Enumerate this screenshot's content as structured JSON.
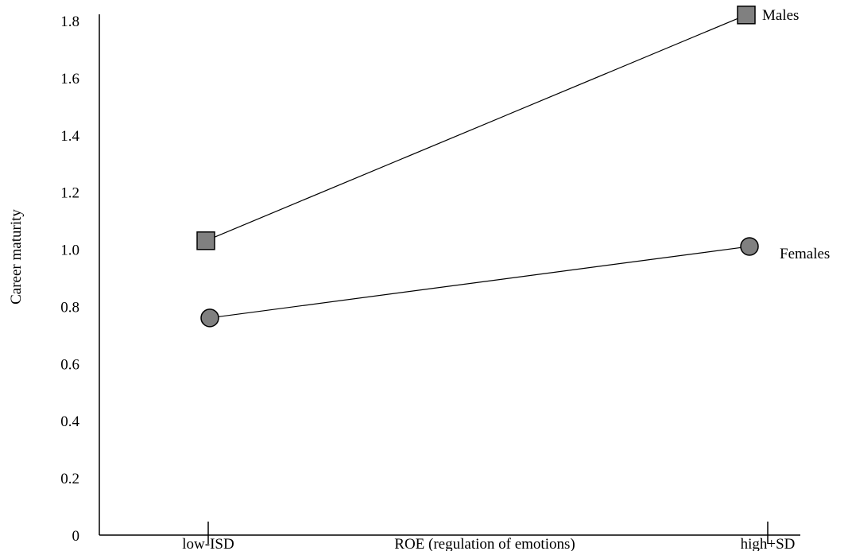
{
  "chart_data": {
    "type": "line",
    "title": "",
    "xlabel": "ROE (regulation of emotions)",
    "ylabel": "Career maturity",
    "categories": [
      "low-ISD",
      "high+SD"
    ],
    "ylim": [
      0,
      1.8
    ],
    "yticks": [
      "0",
      "0.2",
      "0.4",
      "0.6",
      "0.8",
      "1.0",
      "1.2",
      "1.4",
      "1.6",
      "1.8"
    ],
    "grid": false,
    "legend": "inline-right",
    "series": [
      {
        "name": "Males",
        "values": [
          1.03,
          1.82
        ],
        "marker": "square",
        "color": "#808080"
      },
      {
        "name": "Females",
        "values": [
          0.76,
          1.01
        ],
        "marker": "circle",
        "color": "#808080"
      }
    ]
  }
}
